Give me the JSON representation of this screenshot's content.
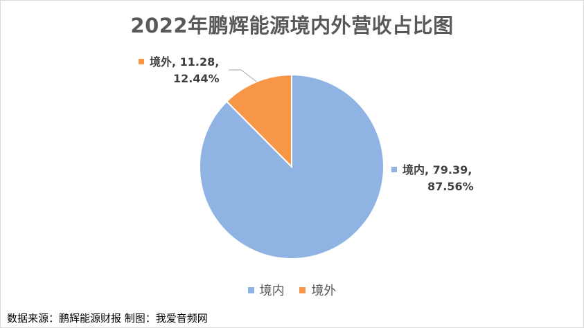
{
  "colors": {
    "inner": "#8fb4e3",
    "outer": "#f79646"
  },
  "chart_data": {
    "type": "pie",
    "title": "2022年鹏辉能源境内外营收占比图",
    "slices": [
      {
        "label": "境内",
        "value": 79.39,
        "percent": "87.56%",
        "color": "#8fb4e3"
      },
      {
        "label": "境外",
        "value": 11.28,
        "percent": "12.44%",
        "color": "#f79646"
      }
    ],
    "legend_position": "bottom"
  },
  "labels": {
    "inner_line1": "境内, 79.39,",
    "inner_line2": "87.56%",
    "outer_line1": "境外, 11.28,",
    "outer_line2": "12.44%"
  },
  "source": "数据来源：鹏辉能源财报  制图：我爱音频网"
}
